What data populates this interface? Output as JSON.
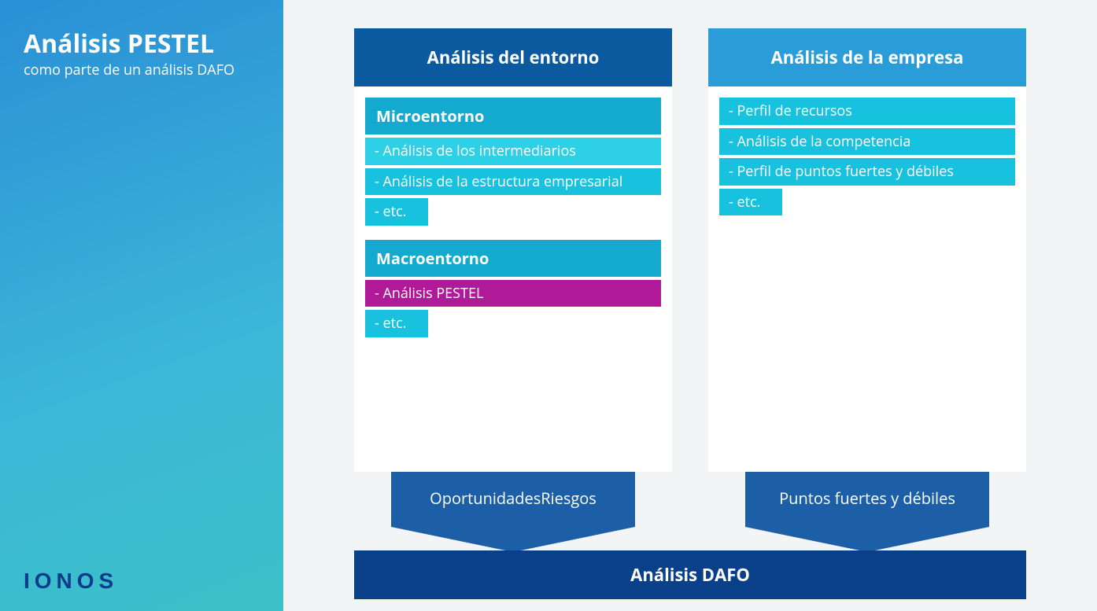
{
  "colors": {
    "sidebar_grad_start": "#2a8fd6",
    "sidebar_grad_end": "#3cc1c8",
    "header_left": "#0b5aa0",
    "header_right": "#2a9cd8",
    "section_title": "#14a9cf",
    "item_teal": "#18c2df",
    "item_lightteal": "#2dd0e6",
    "item_magenta": "#b01997",
    "arrow_bg": "#1d5fa6",
    "dafo_bg": "#0a3f8a"
  },
  "sidebar": {
    "title": "Análisis PESTEL",
    "subtitle": "como parte de un análisis DAFO",
    "logo": "IONOS"
  },
  "left": {
    "header": "Análisis del entorno",
    "groups": [
      {
        "title": "Microentorno",
        "items": [
          {
            "text": "- Análisis de los intermediarios",
            "bg": "item_lightteal"
          },
          {
            "text": "- Análisis de la estructura empresarial",
            "bg": "item_teal"
          },
          {
            "text": "- etc.",
            "bg": "item_teal",
            "short": true
          }
        ]
      },
      {
        "title": "Macroentorno",
        "items": [
          {
            "text": "- Análisis PESTEL",
            "bg": "item_magenta"
          },
          {
            "text": "- etc.",
            "bg": "item_teal",
            "short": true
          }
        ]
      }
    ],
    "arrow": "Oportunidades\nRiesgos"
  },
  "right": {
    "header": "Análisis de la empresa",
    "items": [
      {
        "text": "- Perfil de recursos",
        "bg": "item_teal"
      },
      {
        "text": "- Análisis de la competencia",
        "bg": "item_teal"
      },
      {
        "text": "- Perfil de puntos fuertes y débiles",
        "bg": "item_teal"
      },
      {
        "text": "- etc.",
        "bg": "item_teal",
        "short": true
      }
    ],
    "arrow": "Puntos fuertes y débiles"
  },
  "dafo": "Análisis DAFO"
}
